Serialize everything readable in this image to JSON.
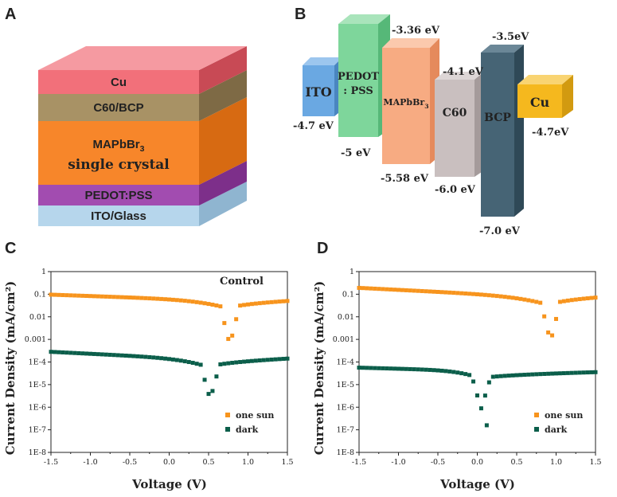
{
  "figure": {
    "panel_labels": [
      "A",
      "B",
      "C",
      "D"
    ]
  },
  "panel_a": {
    "layers": [
      {
        "label": "Cu",
        "color": "#f2707a"
      },
      {
        "label": "C60/BCP",
        "color": "#a89265"
      },
      {
        "label": "MAPbBr3",
        "label_line2": "single crystal",
        "color": "#f7862a"
      },
      {
        "label": "PEDOT:PSS",
        "color": "#a24cb0"
      },
      {
        "label": "ITO/Glass",
        "color": "#b6d6ec"
      }
    ]
  },
  "panel_b": {
    "blocks": [
      {
        "name": "ITO",
        "color": "#6aa8e2",
        "bottom_energy": "-4.7 eV"
      },
      {
        "name": "PEDOT",
        "name_line2": ": PSS",
        "color": "#7ed69b",
        "top_energy": "-3.36 eV",
        "bottom_energy": "-5 eV"
      },
      {
        "name": "MAPbBr3",
        "color": "#f7ab82",
        "bottom_energy": "-5.58 eV"
      },
      {
        "name": "C60",
        "color": "#c9bfbf",
        "top_energy": "-4.1 eV",
        "bottom_energy": "-6.0 eV"
      },
      {
        "name": "BCP",
        "color": "#466475",
        "top_energy": "-3.5eV",
        "bottom_energy": "-7.0 eV"
      },
      {
        "name": "Cu",
        "color": "#f5b81e",
        "bottom_energy": "-4.7eV"
      }
    ]
  },
  "chart_data": [
    {
      "panel": "C",
      "type": "scatter",
      "title": "Control",
      "xlabel": "Voltage (V)",
      "ylabel": "Current Density (mA/cm²)",
      "yscale": "log",
      "xlim": [
        -1.5,
        1.5
      ],
      "ylim": [
        1e-08,
        1
      ],
      "xticks": [
        "-1.5",
        "-1.0",
        "-0.5",
        "0.0",
        "0.5",
        "1.0",
        "1.5"
      ],
      "yticks": [
        "1",
        "0.1",
        "0.01",
        "0.001",
        "1E-4",
        "1E-5",
        "1E-6",
        "1E-7",
        "1E-8"
      ],
      "legend": [
        "one sun",
        "dark"
      ],
      "legend_position": "bottom-right",
      "series": [
        {
          "name": "one sun",
          "color": "#f7941d",
          "v0": 0.77,
          "a": -1.02,
          "b": -1.3,
          "right_end": -1.3,
          "min_log": -3.25
        },
        {
          "name": "dark",
          "color": "#0b5e4a",
          "v0": 0.52,
          "a": -3.55,
          "b": -3.9,
          "right_end": -3.85,
          "min_log": -5.65
        }
      ]
    },
    {
      "panel": "D",
      "type": "scatter",
      "title": "",
      "xlabel": "Voltage (V)",
      "ylabel": "Current Density (mA/cm²)",
      "yscale": "log",
      "xlim": [
        -1.5,
        1.5
      ],
      "ylim": [
        1e-08,
        1
      ],
      "xticks": [
        "-1.5",
        "-1.0",
        "-0.5",
        "0.0",
        "0.5",
        "1.0",
        "1.5"
      ],
      "yticks": [
        "1",
        "0.1",
        "0.01",
        "0.001",
        "1E-4",
        "1E-5",
        "1E-6",
        "1E-7",
        "1E-8"
      ],
      "legend": [
        "one sun",
        "dark"
      ],
      "legend_position": "bottom-right",
      "series": [
        {
          "name": "one sun",
          "color": "#f7941d",
          "v0": 0.93,
          "a": -0.72,
          "b": -1.15,
          "right_end": -1.15,
          "min_log": -3.1
        },
        {
          "name": "dark",
          "color": "#0b5e4a",
          "v0": 0.05,
          "a": -4.25,
          "b": -4.4,
          "right_end": -4.45,
          "min_log": -6.05,
          "outlier": [
            0.12,
            -6.8
          ]
        }
      ]
    }
  ]
}
